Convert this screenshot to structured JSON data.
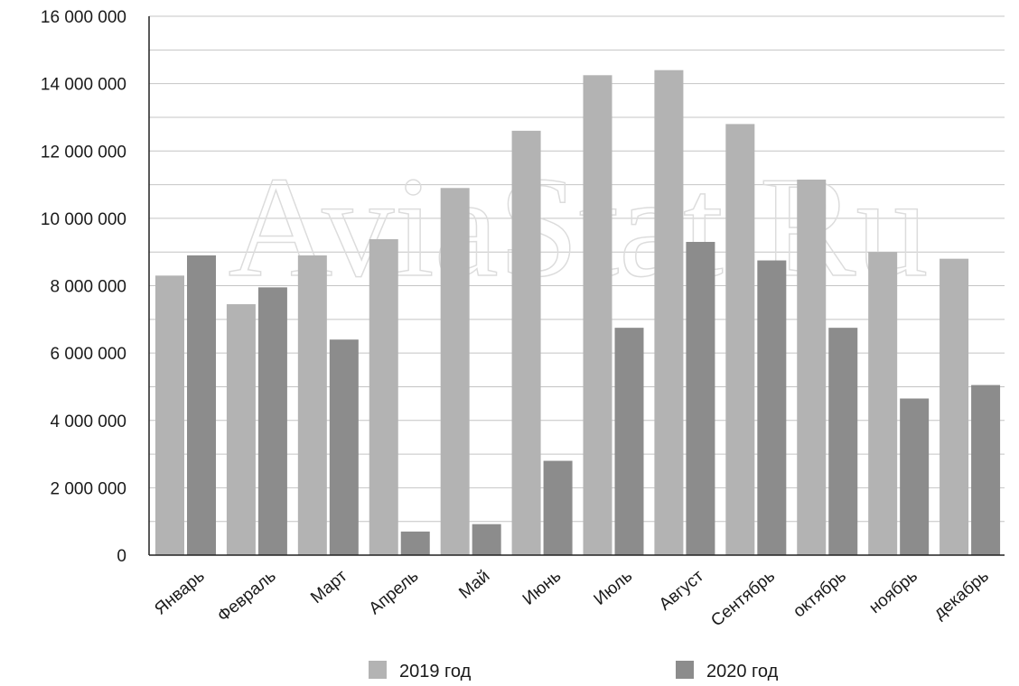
{
  "chart_data": {
    "type": "bar",
    "title": "",
    "xlabel": "",
    "ylabel": "",
    "ylim": [
      0,
      16000000
    ],
    "yticks": [
      0,
      2000000,
      4000000,
      6000000,
      8000000,
      10000000,
      12000000,
      14000000,
      16000000
    ],
    "ytick_labels": [
      "0",
      "2 000 000",
      "4 000 000",
      "6 000 000",
      "8 000 000",
      "10 000 000",
      "12 000 000",
      "14 000 000",
      "16 000 000"
    ],
    "grid": true,
    "legend_position": "bottom",
    "categories": [
      "Январь",
      "Февраль",
      "Март",
      "Апрель",
      "Май",
      "Июнь",
      "Июль",
      "Август",
      "Сентябрь",
      "октябрь",
      "ноябрь",
      "декабрь"
    ],
    "series": [
      {
        "name": "2019 год",
        "color": "#b3b3b3",
        "values": [
          8300000,
          7450000,
          8900000,
          9380000,
          10900000,
          12600000,
          14250000,
          14400000,
          12800000,
          11150000,
          9000000,
          8800000
        ]
      },
      {
        "name": "2020 год",
        "color": "#8c8c8c",
        "values": [
          8900000,
          7950000,
          6400000,
          700000,
          920000,
          2800000,
          6750000,
          9300000,
          8750000,
          6750000,
          4650000,
          5050000
        ]
      }
    ]
  },
  "watermark": {
    "text": "AviaStat.Ru",
    "colors": {
      "top": "#dcdcdc",
      "bottom": "#c0c0c0"
    }
  }
}
